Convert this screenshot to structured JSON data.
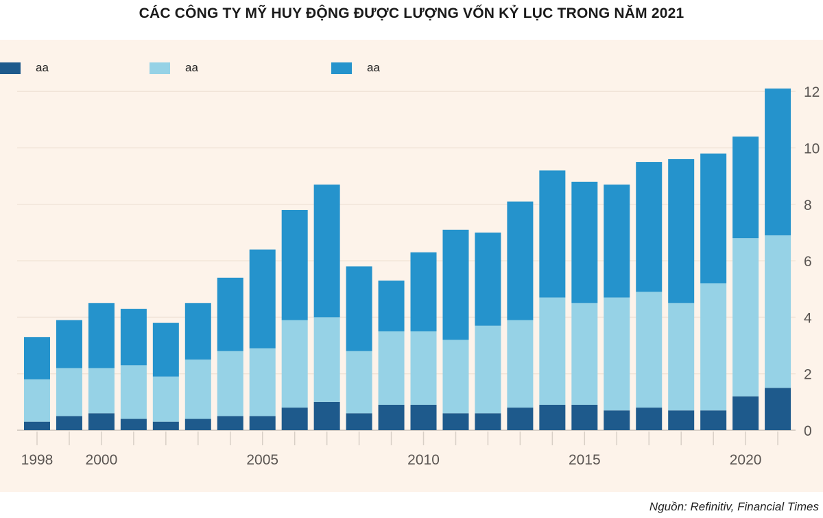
{
  "title": "CÁC CÔNG TY MỸ HUY ĐỘNG ĐƯỢC LƯỢNG VỐN KỶ LỤC TRONG NĂM 2021",
  "source": "Nguồn: Refinitiv, Financial Times",
  "background_color": "#fdf3ea",
  "chart_data": {
    "type": "bar",
    "stacked": true,
    "title": "CÁC CÔNG TY MỸ HUY ĐỘNG ĐƯỢC LƯỢNG VỐN KỶ LỤC TRONG NĂM 2021",
    "categories": [
      "1998",
      "1999",
      "2000",
      "2001",
      "2002",
      "2003",
      "2004",
      "2005",
      "2006",
      "2007",
      "2008",
      "2009",
      "2010",
      "2011",
      "2012",
      "2013",
      "2014",
      "2015",
      "2016",
      "2017",
      "2018",
      "2019",
      "2020",
      "2021"
    ],
    "x_tick_labels": [
      "1998",
      "2000",
      "2005",
      "2010",
      "2015",
      "2020"
    ],
    "y_tick_labels": [
      "0",
      "2",
      "4",
      "6",
      "8",
      "10",
      "12"
    ],
    "ylim": [
      0,
      12
    ],
    "y_axis_side": "right",
    "grid": true,
    "legend_position": "top-left",
    "xlabel": "",
    "ylabel": "",
    "series": [
      {
        "name": "aa",
        "color": "#1e5a8c",
        "values": [
          0.3,
          0.5,
          0.6,
          0.4,
          0.3,
          0.4,
          0.5,
          0.5,
          0.8,
          1.0,
          0.6,
          0.9,
          0.9,
          0.6,
          0.6,
          0.8,
          0.9,
          0.9,
          0.7,
          0.8,
          0.7,
          0.7,
          1.2,
          1.5
        ]
      },
      {
        "name": "aa",
        "color": "#96d2e6",
        "values": [
          1.5,
          1.7,
          1.6,
          1.9,
          1.6,
          2.1,
          2.3,
          2.4,
          3.1,
          3.0,
          2.2,
          2.6,
          2.6,
          2.6,
          3.1,
          3.1,
          3.8,
          3.6,
          4.0,
          4.1,
          3.8,
          4.5,
          5.6,
          5.4
        ]
      },
      {
        "name": "aa",
        "color": "#2593cc",
        "values": [
          1.5,
          1.7,
          2.3,
          2.0,
          1.9,
          2.0,
          2.6,
          3.5,
          3.9,
          4.7,
          3.0,
          1.8,
          2.8,
          3.9,
          3.3,
          4.2,
          4.5,
          4.3,
          4.0,
          4.6,
          5.1,
          4.6,
          3.6,
          5.2
        ]
      }
    ]
  }
}
